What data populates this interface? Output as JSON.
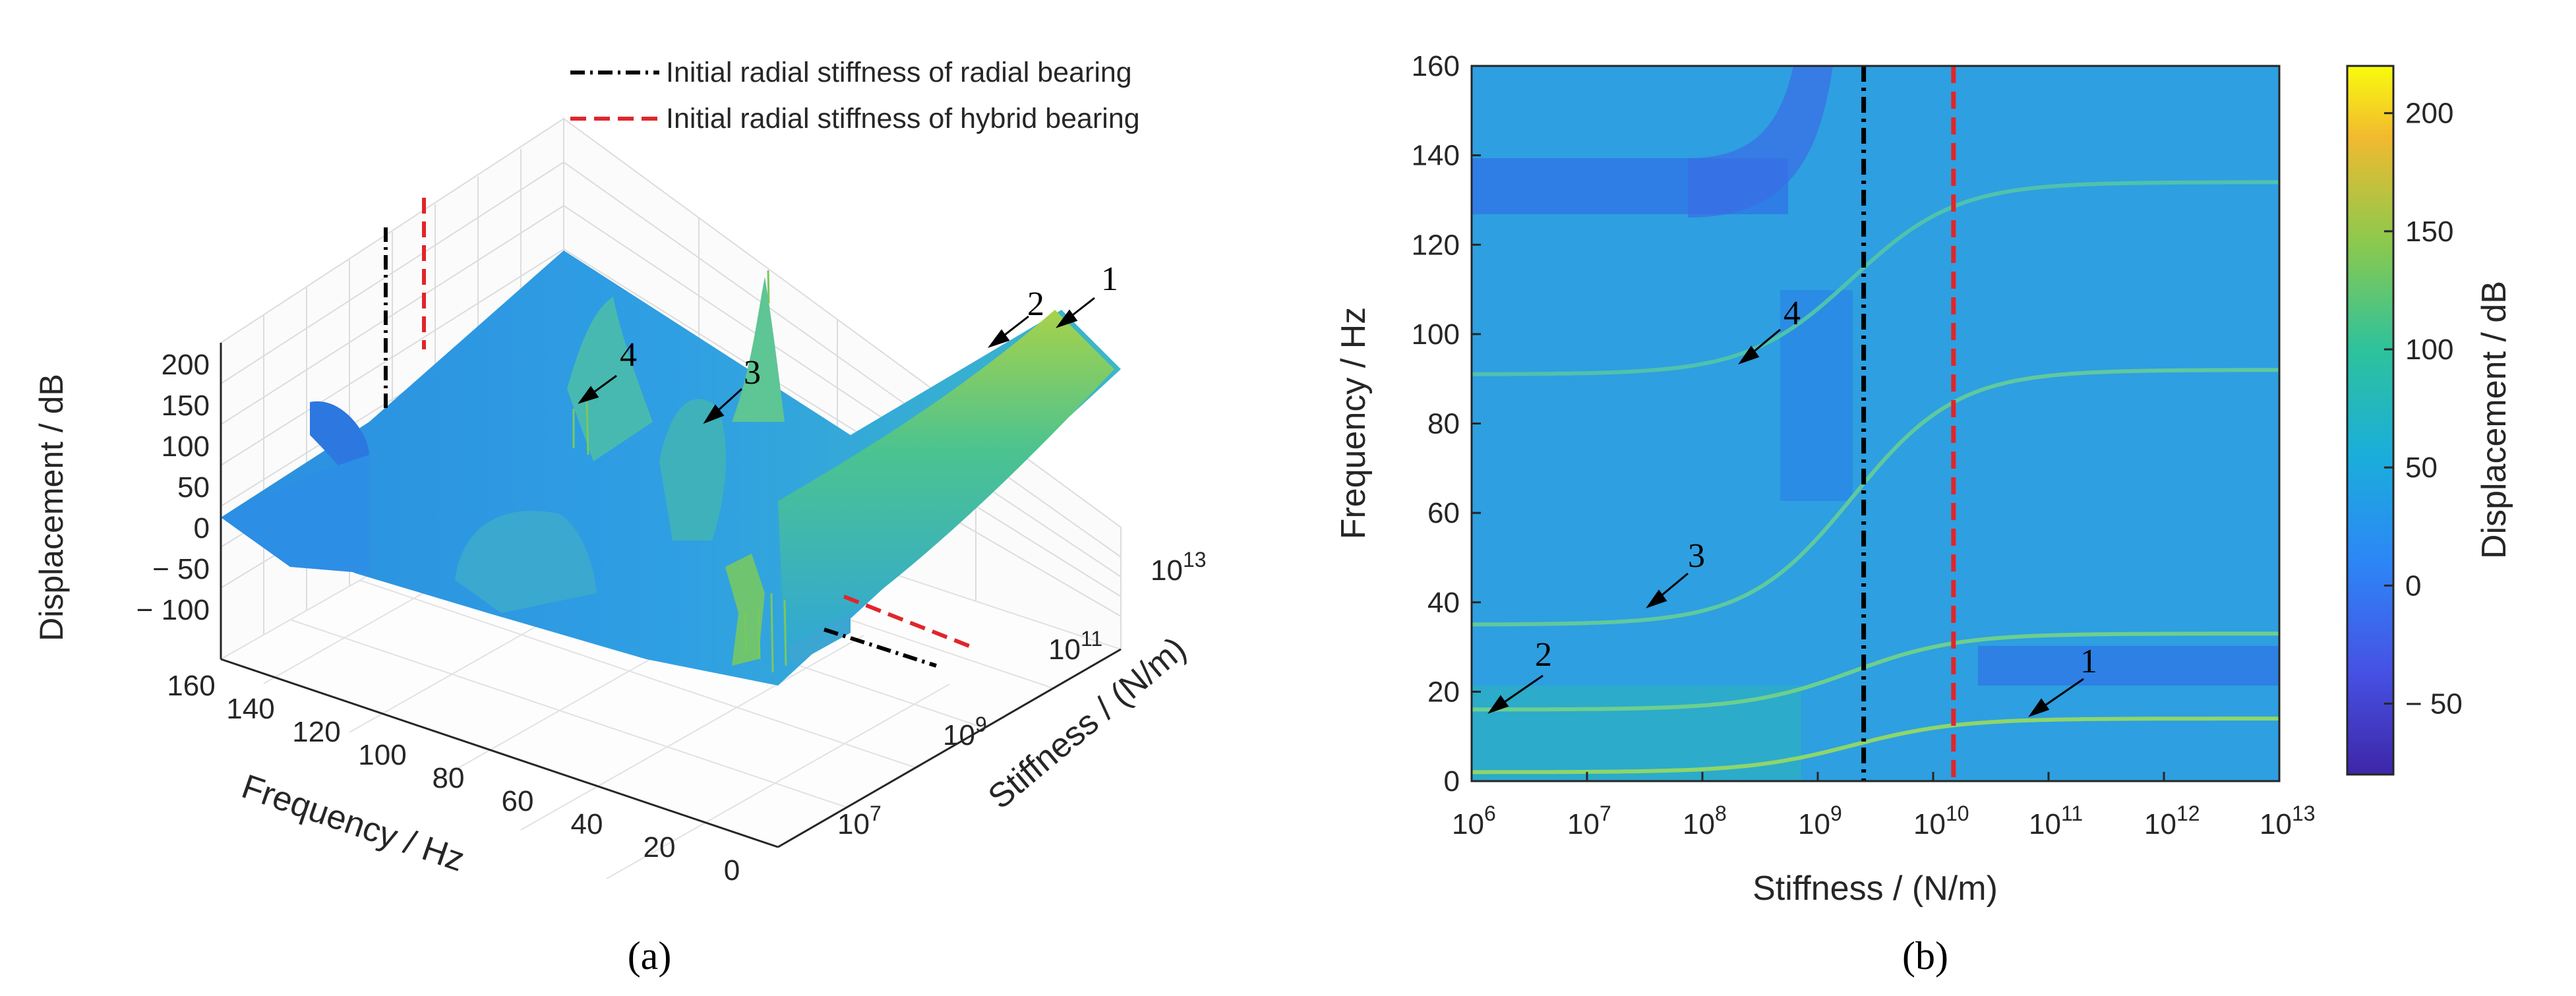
{
  "chart_data": [
    {
      "panel": "a",
      "type": "surface",
      "caption": "(a)",
      "xlabel": "Frequency / Hz",
      "ylabel": "Stiffness / (N/m)",
      "zlabel": "Displacement / dB",
      "xlim": [
        0,
        160
      ],
      "ylim_log10": [
        6,
        13
      ],
      "zlim": [
        -100,
        200
      ],
      "x_ticks": [
        "160",
        "140",
        "120",
        "100",
        "80",
        "60",
        "40",
        "20",
        "0"
      ],
      "y_ticks": [
        {
          "base": "10",
          "exp": "7"
        },
        {
          "base": "10",
          "exp": "9"
        },
        {
          "base": "10",
          "exp": "11"
        },
        {
          "base": "10",
          "exp": "13"
        }
      ],
      "z_ticks": [
        "200",
        "150",
        "100",
        "50",
        "0",
        "− 50",
        "− 100"
      ],
      "legend": [
        {
          "label": "Initial radial stiffness of radial bearing",
          "style": "dash-dot",
          "color": "#000000"
        },
        {
          "label": "Initial radial stiffness of hybrid bearing",
          "style": "dashed",
          "color": "#e0262b"
        }
      ],
      "annotations": [
        "1",
        "2",
        "3",
        "4"
      ],
      "grid": true,
      "colormap": "parula"
    },
    {
      "panel": "b",
      "type": "heatmap",
      "caption": "(b)",
      "xlabel": "Stiffness / (N/m)",
      "ylabel": "Frequency / Hz",
      "x_scale": "log",
      "xlim_log10": [
        6,
        13
      ],
      "ylim": [
        0,
        160
      ],
      "x_ticks": [
        {
          "base": "10",
          "exp": "6"
        },
        {
          "base": "10",
          "exp": "7"
        },
        {
          "base": "10",
          "exp": "8"
        },
        {
          "base": "10",
          "exp": "9"
        },
        {
          "base": "10",
          "exp": "10"
        },
        {
          "base": "10",
          "exp": "11"
        },
        {
          "base": "10",
          "exp": "12"
        },
        {
          "base": "10",
          "exp": "13"
        }
      ],
      "y_ticks": [
        "0",
        "20",
        "40",
        "60",
        "80",
        "100",
        "120",
        "140",
        "160"
      ],
      "colorbar": {
        "label": "Displacement / dB",
        "range": [
          -80,
          220
        ],
        "ticks": [
          "200",
          "150",
          "100",
          "50",
          "0",
          "− 50"
        ],
        "tick_values": [
          200,
          150,
          100,
          50,
          0,
          -50
        ]
      },
      "vertical_lines": [
        {
          "stiffness": 2500000000,
          "style": "dash-dot",
          "color": "#000000"
        },
        {
          "stiffness": 15000000000,
          "style": "dashed",
          "color": "#e0262b"
        }
      ],
      "background_color": "#2e9fe0",
      "modes": [
        {
          "label": "1",
          "low_frequency": 2,
          "high_frequency": 14
        },
        {
          "label": "2",
          "low_frequency": 16,
          "high_frequency": 33
        },
        {
          "label": "3",
          "low_frequency": 35,
          "high_frequency": 92
        },
        {
          "label": "4",
          "low_frequency": 91,
          "high_frequency": 134
        }
      ]
    }
  ]
}
